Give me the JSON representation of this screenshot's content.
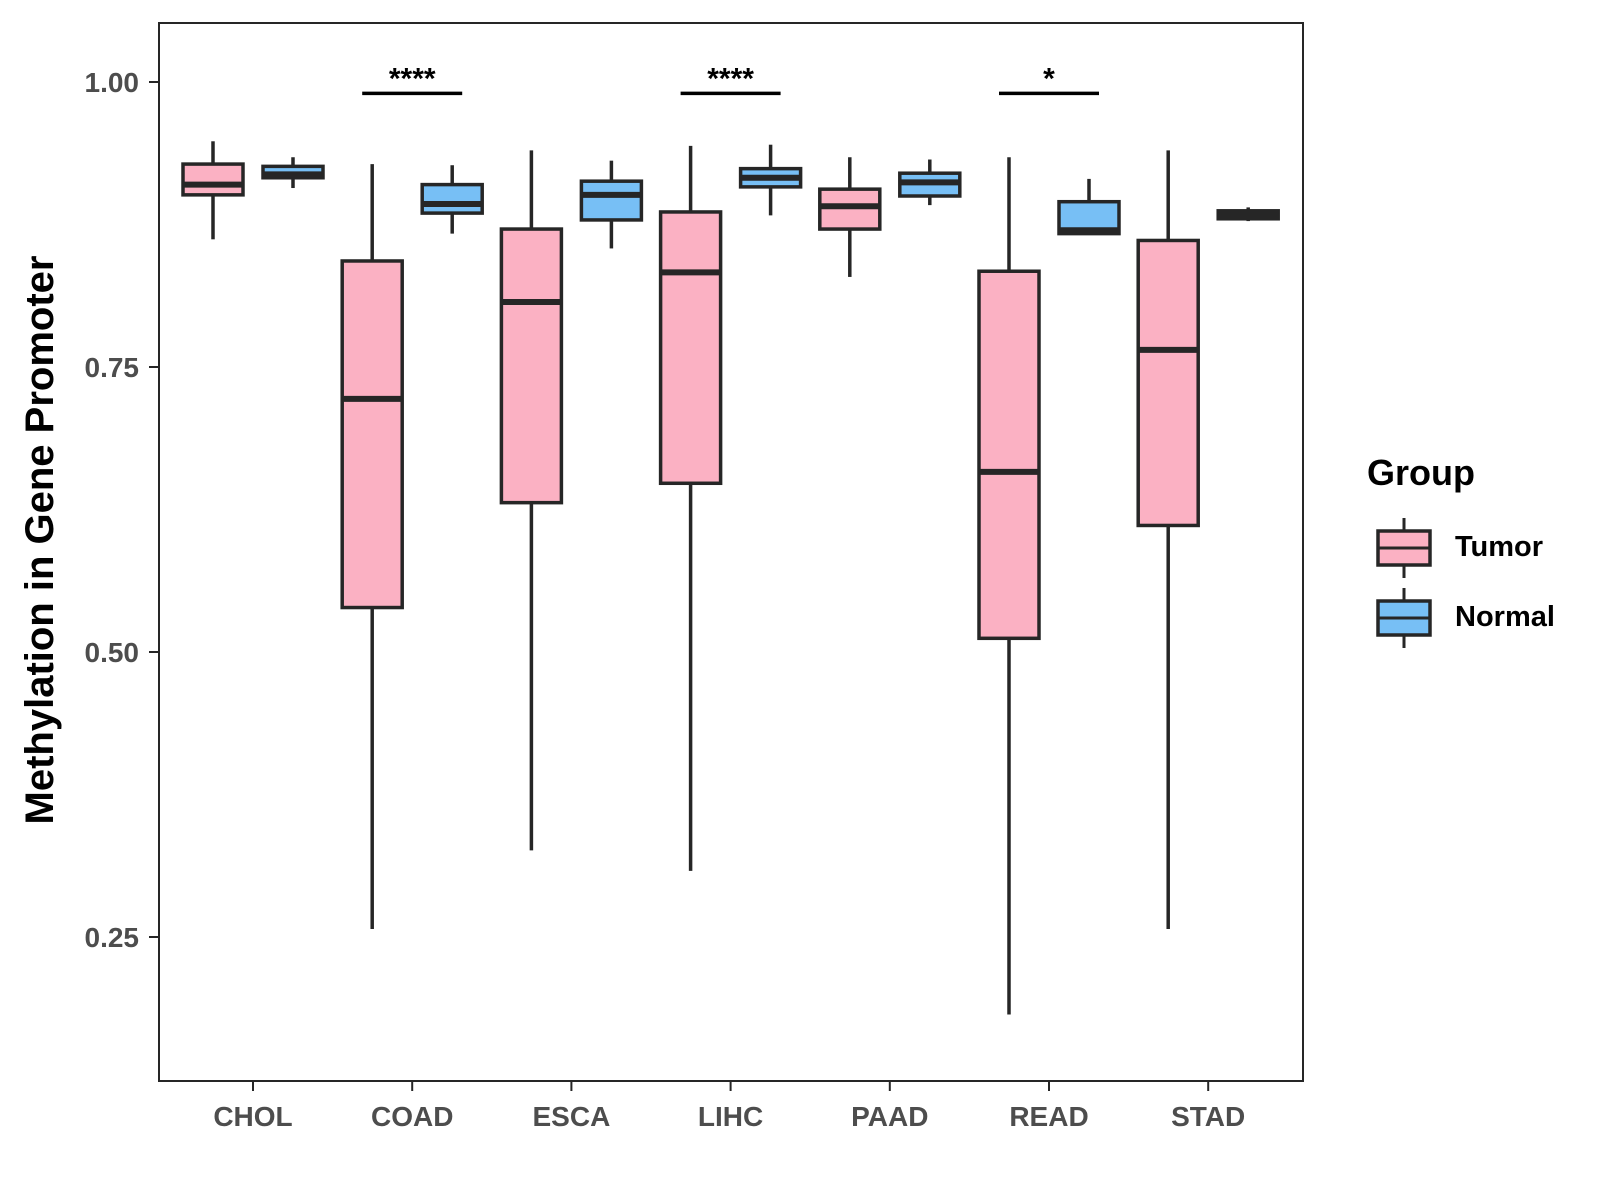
{
  "chart_data": {
    "type": "boxplot",
    "title": "",
    "xlabel": "",
    "ylabel": "Methylation in Gene Promoter",
    "ylim": [
      0.125,
      1.05
    ],
    "yticks": [
      0.25,
      0.5,
      0.75,
      1.0
    ],
    "ytick_labels": [
      "0.25",
      "0.50",
      "0.75",
      "1.00"
    ],
    "categories": [
      "CHOL",
      "COAD",
      "ESCA",
      "LIHC",
      "PAAD",
      "READ",
      "STAD"
    ],
    "legend": {
      "title": "Group",
      "position": "right",
      "entries": [
        {
          "name": "Tumor",
          "color": "#FBB1C3"
        },
        {
          "name": "Normal",
          "color": "#77BFF5"
        }
      ]
    },
    "series": [
      {
        "name": "Tumor",
        "color": "#FBB1C3",
        "boxes": [
          {
            "category": "CHOL",
            "min": 0.862,
            "q1": 0.901,
            "median": 0.91,
            "q3": 0.928,
            "max": 0.948
          },
          {
            "category": "COAD",
            "min": 0.257,
            "q1": 0.539,
            "median": 0.722,
            "q3": 0.843,
            "max": 0.928
          },
          {
            "category": "ESCA",
            "min": 0.326,
            "q1": 0.631,
            "median": 0.807,
            "q3": 0.871,
            "max": 0.94
          },
          {
            "category": "LIHC",
            "min": 0.308,
            "q1": 0.648,
            "median": 0.833,
            "q3": 0.886,
            "max": 0.944
          },
          {
            "category": "PAAD",
            "min": 0.829,
            "q1": 0.871,
            "median": 0.891,
            "q3": 0.906,
            "max": 0.934
          },
          {
            "category": "READ",
            "min": 0.182,
            "q1": 0.512,
            "median": 0.658,
            "q3": 0.834,
            "max": 0.934
          },
          {
            "category": "STAD",
            "min": 0.257,
            "q1": 0.611,
            "median": 0.765,
            "q3": 0.861,
            "max": 0.94
          }
        ]
      },
      {
        "name": "Normal",
        "color": "#77BFF5",
        "boxes": [
          {
            "category": "CHOL",
            "min": 0.907,
            "q1": 0.916,
            "median": 0.919,
            "q3": 0.926,
            "max": 0.934
          },
          {
            "category": "COAD",
            "min": 0.867,
            "q1": 0.885,
            "median": 0.893,
            "q3": 0.91,
            "max": 0.927
          },
          {
            "category": "ESCA",
            "min": 0.854,
            "q1": 0.879,
            "median": 0.901,
            "q3": 0.913,
            "max": 0.931
          },
          {
            "category": "LIHC",
            "min": 0.883,
            "q1": 0.908,
            "median": 0.916,
            "q3": 0.924,
            "max": 0.945
          },
          {
            "category": "PAAD",
            "min": 0.892,
            "q1": 0.9,
            "median": 0.912,
            "q3": 0.92,
            "max": 0.932
          },
          {
            "category": "READ",
            "min": 0.867,
            "q1": 0.867,
            "median": 0.87,
            "q3": 0.895,
            "max": 0.915
          },
          {
            "category": "STAD",
            "min": 0.878,
            "q1": 0.88,
            "median": 0.883,
            "q3": 0.887,
            "max": 0.89
          }
        ]
      }
    ],
    "significance": [
      {
        "category": "COAD",
        "label": "****",
        "y": 0.99
      },
      {
        "category": "LIHC",
        "label": "****",
        "y": 0.99
      },
      {
        "category": "READ",
        "label": "*",
        "y": 0.99
      }
    ],
    "grid": false
  }
}
